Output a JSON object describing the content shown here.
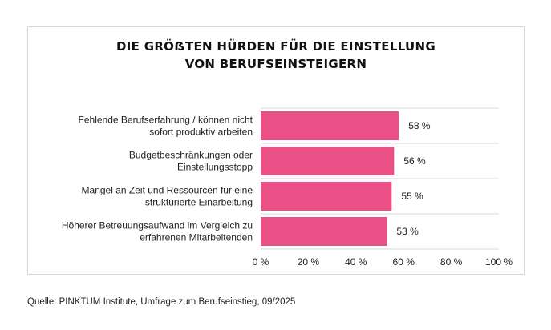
{
  "chart_data": {
    "type": "bar",
    "orientation": "horizontal",
    "title_lines": [
      "DIE GRÖẞTEN HÜRDEN FÜR DIE EINSTELLUNG",
      "VON BERUFSEINSTEIGERN"
    ],
    "categories": [
      [
        "Fehlende Berufserfahrung / können nicht",
        "sofort produktiv arbeiten"
      ],
      [
        "Budgetbeschränkungen oder",
        "Einstellungsstopp"
      ],
      [
        "Mangel an Zeit und Ressourcen für eine",
        "strukturierte Einarbeitung"
      ],
      [
        "Höherer Betreuungsaufwand im Vergleich zu",
        "erfahrenen Mitarbeitenden"
      ]
    ],
    "values": [
      58,
      56,
      55,
      53
    ],
    "data_labels": [
      "58 %",
      "56 %",
      "55 %",
      "53 %"
    ],
    "xlim": [
      0,
      100
    ],
    "xticks": [
      0,
      20,
      40,
      60,
      80,
      100
    ],
    "xtick_labels": [
      "0 %",
      "20 %",
      "40 %",
      "60 %",
      "80 %",
      "100 %"
    ],
    "grid": "horizontal row separators",
    "legend": "none",
    "bar_color": "#ea4f85"
  },
  "source_text": "Quelle: PINKTUM Institute, Umfrage zum Berufseinstieg, 09/2025"
}
